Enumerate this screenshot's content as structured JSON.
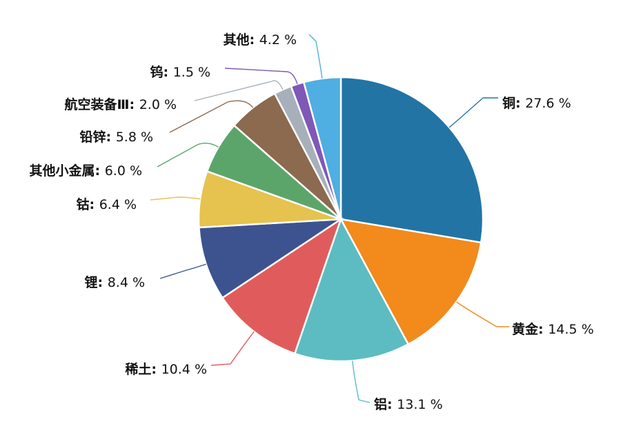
{
  "chart_data": {
    "type": "pie",
    "slices": [
      {
        "label": "铜",
        "value": 27.6,
        "display": "27.6 %",
        "color": "#2274a5"
      },
      {
        "label": "黄金",
        "value": 14.5,
        "display": "14.5 %",
        "color": "#f28a1c"
      },
      {
        "label": "铝",
        "value": 13.1,
        "display": "13.1 %",
        "color": "#5cbcc1"
      },
      {
        "label": "稀土",
        "value": 10.4,
        "display": "10.4 %",
        "color": "#e05c5c"
      },
      {
        "label": "锂",
        "value": 8.4,
        "display": "8.4 %",
        "color": "#3d5390"
      },
      {
        "label": "钴",
        "value": 6.4,
        "display": "6.4 %",
        "color": "#e6c24f"
      },
      {
        "label": "其他小金属",
        "value": 6.0,
        "display": "6.0 %",
        "color": "#5ba56b"
      },
      {
        "label": "铅锌",
        "value": 5.8,
        "display": "5.8 %",
        "color": "#8b6a4f"
      },
      {
        "label": "航空装备Ⅲ",
        "value": 2.0,
        "display": "2.0 %",
        "color": "#a7b0ba"
      },
      {
        "label": "钨",
        "value": 1.5,
        "display": "1.5 %",
        "color": "#7f58b8"
      },
      {
        "label": "其他",
        "value": 4.2,
        "display": "4.2 %",
        "color": "#4faee2"
      }
    ]
  }
}
